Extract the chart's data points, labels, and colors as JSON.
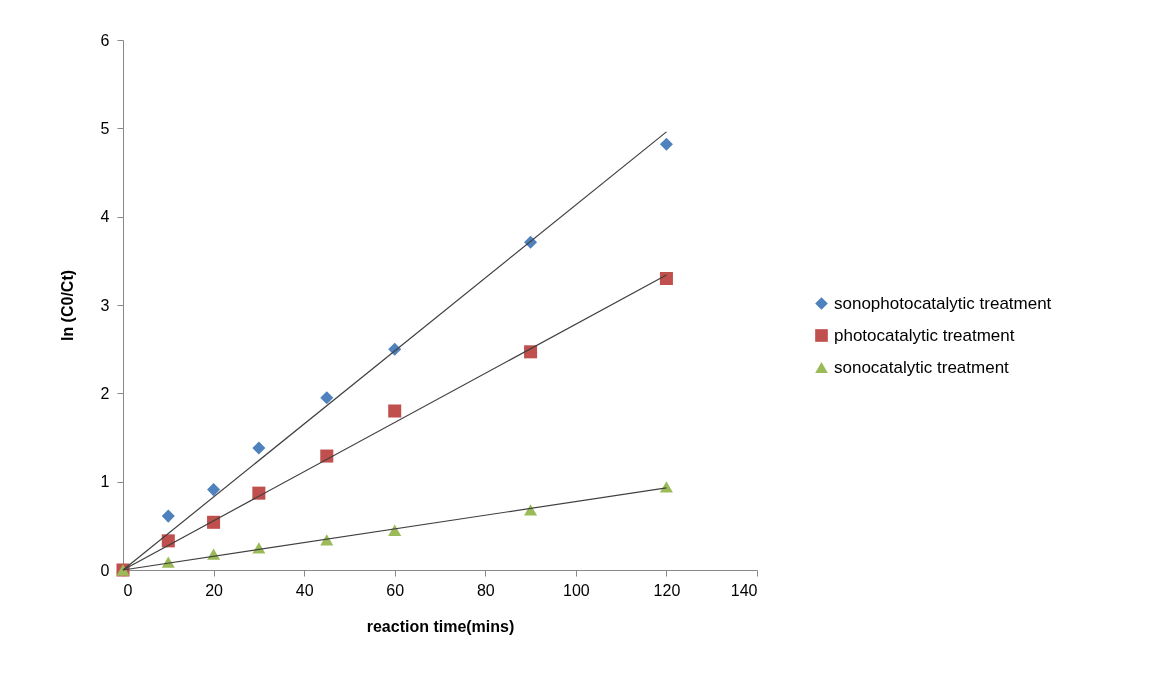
{
  "chart_data": {
    "type": "scatter",
    "xlabel": "reaction time(mins)",
    "ylabel": "ln (C0/Ct)",
    "xlim": [
      0,
      140
    ],
    "xticks": [
      0,
      20,
      40,
      60,
      80,
      100,
      120,
      140
    ],
    "ylim": [
      0,
      6
    ],
    "yticks": [
      0,
      1,
      2,
      3,
      4,
      5,
      6
    ],
    "grid": false,
    "legend": "right",
    "series": [
      {
        "name": "sonophotocatalytic treatment",
        "marker": "diamond",
        "color": "#4f81bd",
        "x": [
          10,
          20,
          30,
          45,
          60,
          90,
          120
        ],
        "values": [
          0.61,
          0.91,
          1.38,
          1.95,
          2.5,
          3.71,
          4.82
        ]
      },
      {
        "name": "photocatalytic treatment",
        "marker": "square",
        "color": "#c0504d",
        "x": [
          0,
          10,
          20,
          30,
          45,
          60,
          90,
          120
        ],
        "values": [
          0,
          0.33,
          0.54,
          0.87,
          1.29,
          1.8,
          2.47,
          3.3
        ]
      },
      {
        "name": "sonocatalytic treatment",
        "marker": "triangle",
        "color": "#9bbb59",
        "x": [
          0,
          10,
          20,
          30,
          45,
          60,
          90,
          120
        ],
        "values": [
          0,
          0.09,
          0.18,
          0.25,
          0.34,
          0.45,
          0.68,
          0.94
        ]
      },
      {
        "type": "line",
        "color": "#404040",
        "x": [
          0,
          120
        ],
        "values": [
          0,
          4.96
        ]
      },
      {
        "type": "line",
        "color": "#404040",
        "x": [
          0,
          120
        ],
        "values": [
          0,
          3.34
        ]
      },
      {
        "type": "line",
        "color": "#404040",
        "x": [
          0,
          120
        ],
        "values": [
          0,
          0.93
        ]
      }
    ]
  }
}
